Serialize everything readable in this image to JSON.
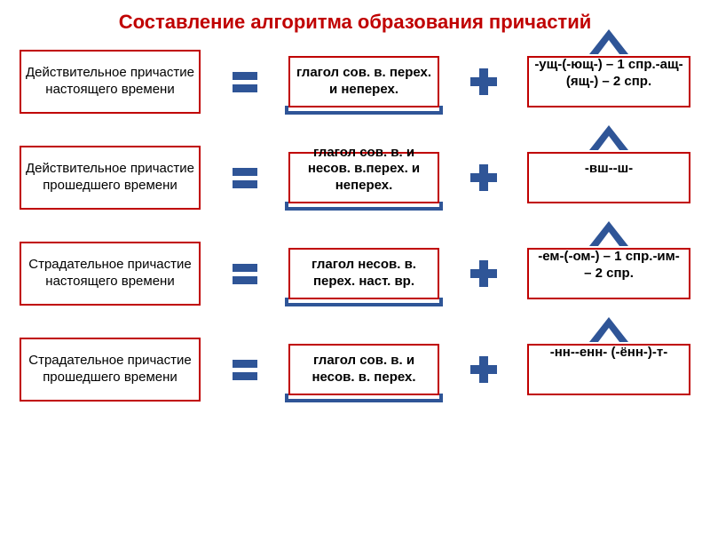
{
  "title": "Составление алгоритма образования причастий",
  "colors": {
    "title": "#c00000",
    "box_border": "#c00000",
    "text": "#000000",
    "equals": "#2f5597",
    "plus": "#2f5597",
    "bracket": "#2f5597",
    "caret_fill": "#2f5597"
  },
  "layout": {
    "box_left_w": 204,
    "box_left_h": 72,
    "box_mid_w": 170,
    "box_mid_h": 58,
    "box_right_w": 184,
    "box_right_h": 58,
    "equals_bar_w": 28,
    "equals_bar_h": 9,
    "plus_size": 34,
    "plus_thickness": 10,
    "caret_w": 44,
    "caret_h": 28,
    "row_gap": 36,
    "font_size_box": 15,
    "font_size_title": 22
  },
  "rows": [
    {
      "left": "Действительное причастие настоящего времени",
      "mid": "глагол сов. в. перех. и неперех.",
      "right": "-ущ-(-ющ-) – 1 спр.\n-ащ-(ящ-) – 2 спр."
    },
    {
      "left": "Действительное причастие прошедшего времени",
      "mid": "глагол сов. в. и несов. в.\nперех. и неперех.",
      "right": "-вш-\n-ш-"
    },
    {
      "left": "Страдательное причастие настоящего времени",
      "mid": "глагол несов. в. перех.  наст. вр.",
      "right": "-ем-(-ом-) – 1 спр.\n-им- – 2 спр."
    },
    {
      "left": "Страдательное причастие прошедшего времени",
      "mid": "глагол сов. в. и несов. в. перех.",
      "right": "-нн-\n-енн- (-ённ-)\n-т-"
    }
  ]
}
